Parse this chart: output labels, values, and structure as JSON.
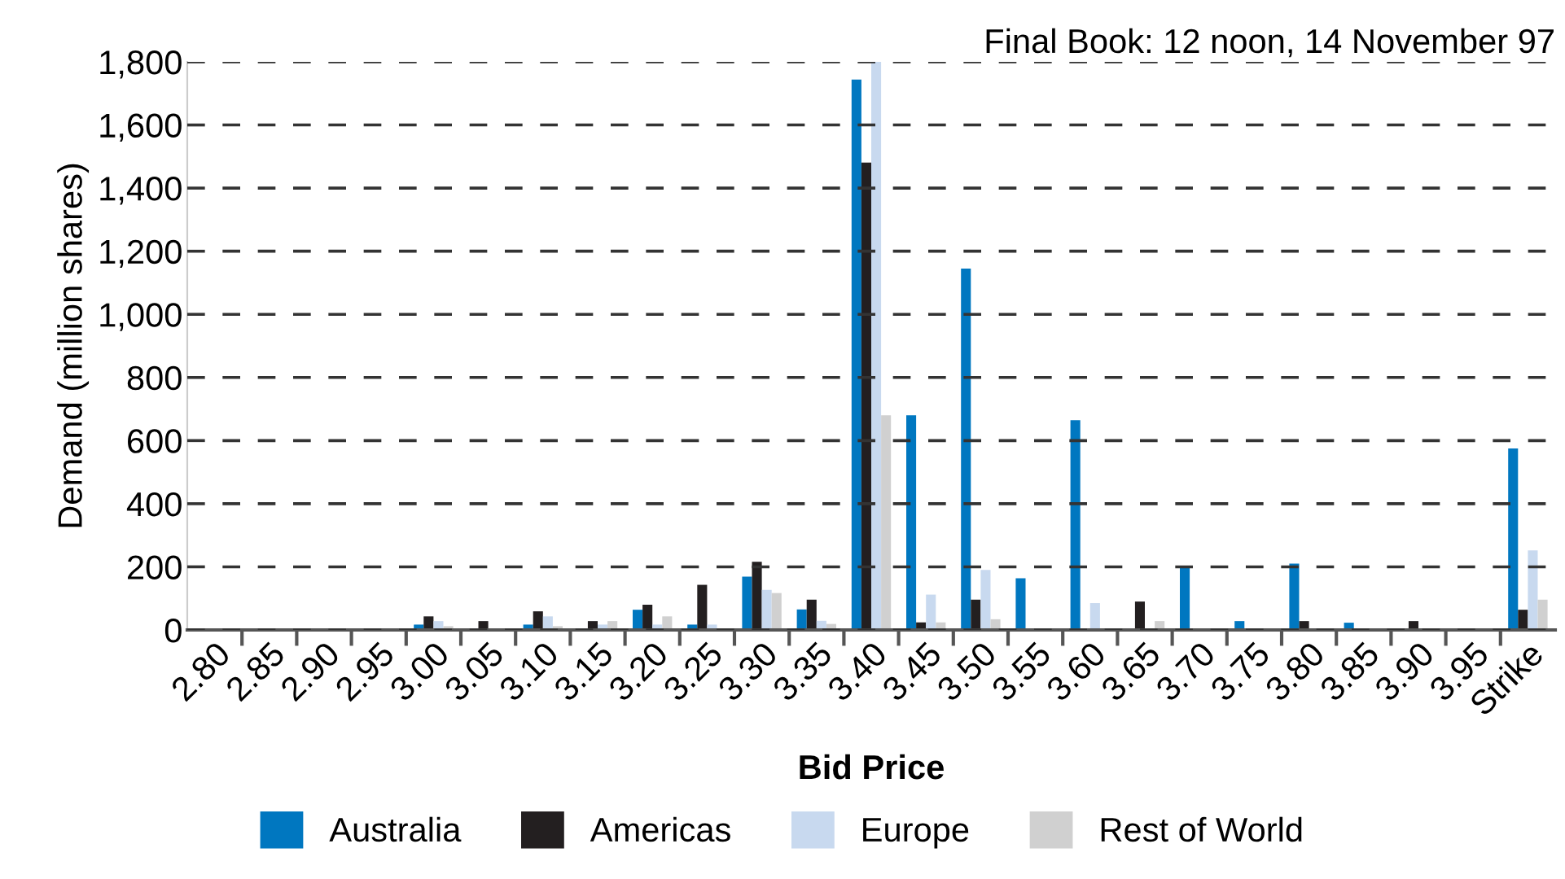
{
  "chart_data": {
    "type": "bar",
    "title": "Final Book: 12 noon, 14 November 97",
    "xlabel": "Bid Price",
    "ylabel": "Demand (million shares)",
    "categories": [
      "2.80",
      "2.85",
      "2.90",
      "2.95",
      "3.00",
      "3.05",
      "3.10",
      "3.15",
      "3.20",
      "3.25",
      "3.30",
      "3.35",
      "3.40",
      "3.45",
      "3.50",
      "3.55",
      "3.60",
      "3.65",
      "3.70",
      "3.75",
      "3.80",
      "3.85",
      "3.90",
      "3.95",
      "Strike"
    ],
    "series": [
      {
        "name": "Australia",
        "color": "#0077c0",
        "values": [
          0,
          0,
          0,
          0,
          17,
          0,
          17,
          0,
          64,
          17,
          169,
          65,
          1744,
          680,
          1145,
          164,
          665,
          0,
          200,
          28,
          210,
          23,
          0,
          0,
          575
        ]
      },
      {
        "name": "Americas",
        "color": "#231f20",
        "values": [
          0,
          0,
          0,
          0,
          43,
          28,
          59,
          28,
          80,
          143,
          216,
          96,
          1481,
          24,
          96,
          0,
          0,
          90,
          0,
          0,
          28,
          0,
          28,
          0,
          64
        ]
      },
      {
        "name": "Europe",
        "color": "#c8d9ef",
        "values": [
          0,
          0,
          0,
          0,
          28,
          0,
          43,
          17,
          17,
          17,
          127,
          29,
          1800,
          112,
          190,
          0,
          85,
          0,
          0,
          0,
          0,
          0,
          0,
          0,
          252
        ]
      },
      {
        "name": "Rest of World",
        "color": "#d0d0d0",
        "values": [
          0,
          0,
          0,
          0,
          12,
          0,
          12,
          28,
          43,
          0,
          117,
          19,
          680,
          24,
          34,
          0,
          0,
          28,
          0,
          0,
          0,
          0,
          0,
          0,
          96
        ]
      }
    ],
    "ylim": [
      0,
      1800
    ],
    "yticks": [
      0,
      200,
      400,
      600,
      800,
      {
        "value": 1000,
        "label": "1,000"
      },
      {
        "value": 1200,
        "label": "1,200"
      },
      {
        "value": 1400,
        "label": "1,400"
      },
      {
        "value": 1600,
        "label": "1,600"
      },
      {
        "value": 1800,
        "label": "1,800"
      }
    ],
    "grid": "y",
    "legend": "bottom"
  }
}
